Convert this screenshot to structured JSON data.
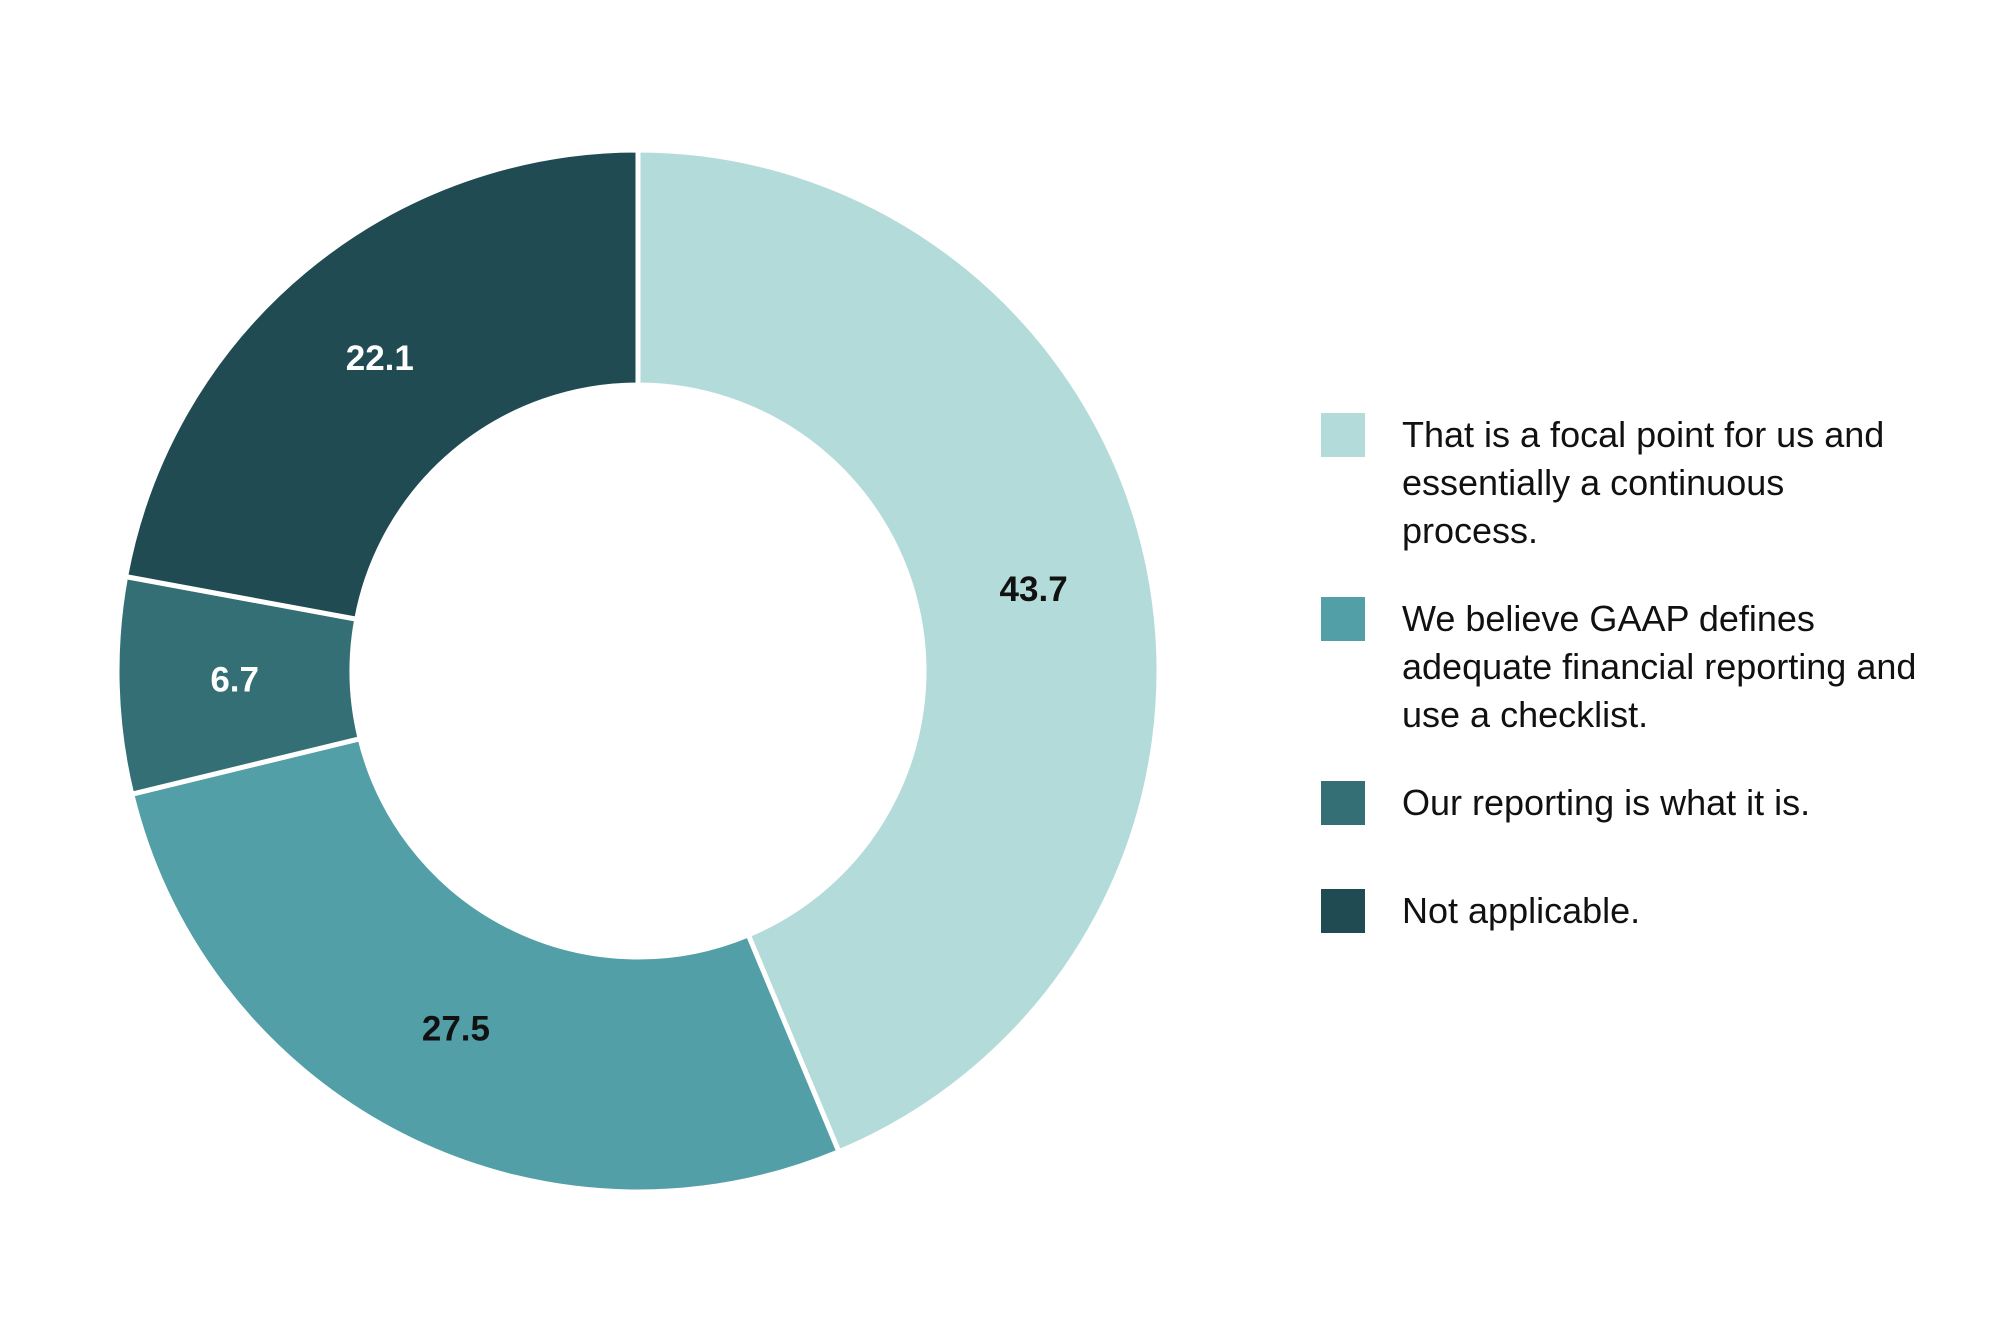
{
  "chart_data": {
    "type": "donut",
    "categories": [
      "That is a focal point for us and essentially a continuous process.",
      "We believe GAAP defines adequate financial reporting and use a checklist.",
      "Our reporting is what it is.",
      "Not applicable."
    ],
    "values": [
      43.7,
      27.5,
      6.7,
      22.1
    ],
    "colors": [
      "#b3dbd9",
      "#529fa7",
      "#356f76",
      "#204b53"
    ],
    "legend": "right"
  }
}
